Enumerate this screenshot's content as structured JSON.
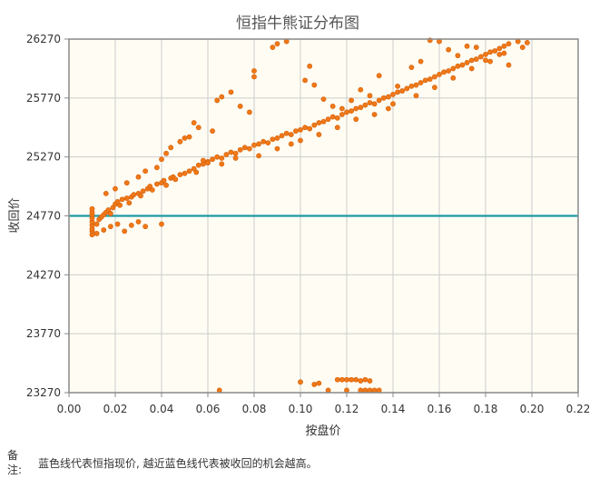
{
  "chart_data": {
    "type": "scatter",
    "title": "恒指牛熊证分布图",
    "xlabel": "按盘价",
    "ylabel": "收回价",
    "xlim": [
      0.0,
      0.22
    ],
    "ylim": [
      23270,
      26270
    ],
    "x_ticks": [
      "0.00",
      "0.02",
      "0.04",
      "0.06",
      "0.08",
      "0.10",
      "0.12",
      "0.14",
      "0.16",
      "0.18",
      "0.20",
      "0.22"
    ],
    "y_ticks": [
      "23270",
      "23770",
      "24270",
      "24770",
      "25270",
      "25770",
      "26270"
    ],
    "reference_line": {
      "y": 24770,
      "color": "#1e9aa6"
    },
    "marker_color": "#f07818",
    "plot_background": "#fffdf3",
    "grid": true,
    "series": [
      {
        "points": [
          [
            0.01,
            24610
          ],
          [
            0.01,
            24640
          ],
          [
            0.01,
            24660
          ],
          [
            0.01,
            24690
          ],
          [
            0.01,
            24720
          ],
          [
            0.01,
            24750
          ],
          [
            0.01,
            24780
          ],
          [
            0.01,
            24800
          ],
          [
            0.01,
            24830
          ],
          [
            0.012,
            24700
          ],
          [
            0.013,
            24740
          ],
          [
            0.014,
            24760
          ],
          [
            0.015,
            24780
          ],
          [
            0.016,
            24800
          ],
          [
            0.017,
            24820
          ],
          [
            0.018,
            24790
          ],
          [
            0.019,
            24840
          ],
          [
            0.02,
            24870
          ],
          [
            0.021,
            24890
          ],
          [
            0.022,
            24860
          ],
          [
            0.023,
            24910
          ],
          [
            0.025,
            24920
          ],
          [
            0.026,
            24880
          ],
          [
            0.027,
            24930
          ],
          [
            0.028,
            24950
          ],
          [
            0.03,
            24960
          ],
          [
            0.031,
            24940
          ],
          [
            0.032,
            24980
          ],
          [
            0.034,
            25000
          ],
          [
            0.035,
            25020
          ],
          [
            0.036,
            24990
          ],
          [
            0.038,
            25040
          ],
          [
            0.04,
            25050
          ],
          [
            0.041,
            25070
          ],
          [
            0.042,
            25030
          ],
          [
            0.044,
            25090
          ],
          [
            0.045,
            25100
          ],
          [
            0.046,
            25080
          ],
          [
            0.048,
            25120
          ],
          [
            0.05,
            25130
          ],
          [
            0.052,
            25150
          ],
          [
            0.054,
            25170
          ],
          [
            0.055,
            25140
          ],
          [
            0.056,
            25200
          ],
          [
            0.058,
            25210
          ],
          [
            0.06,
            25230
          ],
          [
            0.062,
            25250
          ],
          [
            0.064,
            25270
          ],
          [
            0.066,
            25260
          ],
          [
            0.068,
            25290
          ],
          [
            0.07,
            25310
          ],
          [
            0.072,
            25300
          ],
          [
            0.074,
            25330
          ],
          [
            0.076,
            25350
          ],
          [
            0.078,
            25340
          ],
          [
            0.08,
            25370
          ],
          [
            0.082,
            25380
          ],
          [
            0.084,
            25400
          ],
          [
            0.086,
            25390
          ],
          [
            0.088,
            25420
          ],
          [
            0.09,
            25430
          ],
          [
            0.092,
            25450
          ],
          [
            0.094,
            25470
          ],
          [
            0.096,
            25460
          ],
          [
            0.098,
            25490
          ],
          [
            0.1,
            25500
          ],
          [
            0.102,
            25520
          ],
          [
            0.104,
            25510
          ],
          [
            0.106,
            25540
          ],
          [
            0.108,
            25560
          ],
          [
            0.11,
            25570
          ],
          [
            0.112,
            25590
          ],
          [
            0.114,
            25610
          ],
          [
            0.116,
            25600
          ],
          [
            0.118,
            25630
          ],
          [
            0.12,
            25650
          ],
          [
            0.122,
            25660
          ],
          [
            0.124,
            25680
          ],
          [
            0.126,
            25690
          ],
          [
            0.128,
            25710
          ],
          [
            0.13,
            25730
          ],
          [
            0.132,
            25720
          ],
          [
            0.134,
            25750
          ],
          [
            0.136,
            25770
          ],
          [
            0.138,
            25780
          ],
          [
            0.14,
            25800
          ],
          [
            0.142,
            25820
          ],
          [
            0.144,
            25830
          ],
          [
            0.146,
            25850
          ],
          [
            0.148,
            25870
          ],
          [
            0.15,
            25880
          ],
          [
            0.152,
            25900
          ],
          [
            0.154,
            25920
          ],
          [
            0.156,
            25930
          ],
          [
            0.158,
            25950
          ],
          [
            0.16,
            25970
          ],
          [
            0.162,
            25990
          ],
          [
            0.164,
            26000
          ],
          [
            0.166,
            26020
          ],
          [
            0.168,
            26040
          ],
          [
            0.17,
            26050
          ],
          [
            0.172,
            26070
          ],
          [
            0.174,
            26090
          ],
          [
            0.176,
            26100
          ],
          [
            0.178,
            26120
          ],
          [
            0.18,
            26140
          ],
          [
            0.182,
            26160
          ],
          [
            0.184,
            26170
          ],
          [
            0.186,
            26190
          ],
          [
            0.188,
            26210
          ],
          [
            0.19,
            26230
          ],
          [
            0.194,
            26250
          ],
          [
            0.198,
            26240
          ],
          [
            0.012,
            24620
          ],
          [
            0.015,
            24650
          ],
          [
            0.018,
            24680
          ],
          [
            0.021,
            24700
          ],
          [
            0.024,
            24640
          ],
          [
            0.027,
            24690
          ],
          [
            0.03,
            24720
          ],
          [
            0.033,
            24680
          ],
          [
            0.04,
            24700
          ],
          [
            0.016,
            24960
          ],
          [
            0.02,
            25000
          ],
          [
            0.025,
            25050
          ],
          [
            0.03,
            25100
          ],
          [
            0.033,
            25150
          ],
          [
            0.038,
            25180
          ],
          [
            0.04,
            25250
          ],
          [
            0.042,
            25300
          ],
          [
            0.044,
            25350
          ],
          [
            0.048,
            25400
          ],
          [
            0.05,
            25430
          ],
          [
            0.052,
            25440
          ],
          [
            0.054,
            25560
          ],
          [
            0.056,
            25520
          ],
          [
            0.062,
            25490
          ],
          [
            0.064,
            25750
          ],
          [
            0.066,
            25780
          ],
          [
            0.07,
            25820
          ],
          [
            0.074,
            25700
          ],
          [
            0.078,
            25650
          ],
          [
            0.08,
            25950
          ],
          [
            0.08,
            26000
          ],
          [
            0.088,
            26200
          ],
          [
            0.09,
            26230
          ],
          [
            0.094,
            26250
          ],
          [
            0.098,
            26290
          ],
          [
            0.102,
            25920
          ],
          [
            0.104,
            26040
          ],
          [
            0.106,
            25880
          ],
          [
            0.11,
            25760
          ],
          [
            0.114,
            25700
          ],
          [
            0.118,
            25680
          ],
          [
            0.122,
            25750
          ],
          [
            0.126,
            25840
          ],
          [
            0.13,
            25790
          ],
          [
            0.134,
            25960
          ],
          [
            0.138,
            25680
          ],
          [
            0.142,
            25870
          ],
          [
            0.148,
            26030
          ],
          [
            0.152,
            26080
          ],
          [
            0.156,
            26260
          ],
          [
            0.16,
            26250
          ],
          [
            0.164,
            26180
          ],
          [
            0.168,
            26130
          ],
          [
            0.172,
            26210
          ],
          [
            0.176,
            26200
          ],
          [
            0.18,
            26090
          ],
          [
            0.186,
            26140
          ],
          [
            0.19,
            26050
          ],
          [
            0.196,
            26200
          ],
          [
            0.058,
            25240
          ],
          [
            0.06,
            25220
          ],
          [
            0.066,
            25210
          ],
          [
            0.072,
            25260
          ],
          [
            0.082,
            25280
          ],
          [
            0.09,
            25340
          ],
          [
            0.096,
            25380
          ],
          [
            0.1,
            25410
          ],
          [
            0.108,
            25460
          ],
          [
            0.116,
            25520
          ],
          [
            0.124,
            25590
          ],
          [
            0.132,
            25630
          ],
          [
            0.14,
            25720
          ],
          [
            0.15,
            25790
          ],
          [
            0.158,
            25860
          ],
          [
            0.166,
            25940
          ],
          [
            0.174,
            26020
          ],
          [
            0.182,
            26080
          ],
          [
            0.188,
            26150
          ],
          [
            0.065,
            23290
          ],
          [
            0.1,
            23360
          ],
          [
            0.106,
            23340
          ],
          [
            0.108,
            23350
          ],
          [
            0.116,
            23380
          ],
          [
            0.118,
            23380
          ],
          [
            0.12,
            23380
          ],
          [
            0.122,
            23380
          ],
          [
            0.124,
            23380
          ],
          [
            0.126,
            23370
          ],
          [
            0.128,
            23380
          ],
          [
            0.13,
            23370
          ],
          [
            0.112,
            23290
          ],
          [
            0.12,
            23290
          ],
          [
            0.126,
            23290
          ],
          [
            0.128,
            23290
          ],
          [
            0.13,
            23290
          ],
          [
            0.132,
            23290
          ],
          [
            0.134,
            23290
          ]
        ]
      }
    ]
  },
  "note": {
    "label": "备注:",
    "text": "蓝色线代表恒指现价, 越近蓝色线代表被收回的机会越高。"
  }
}
